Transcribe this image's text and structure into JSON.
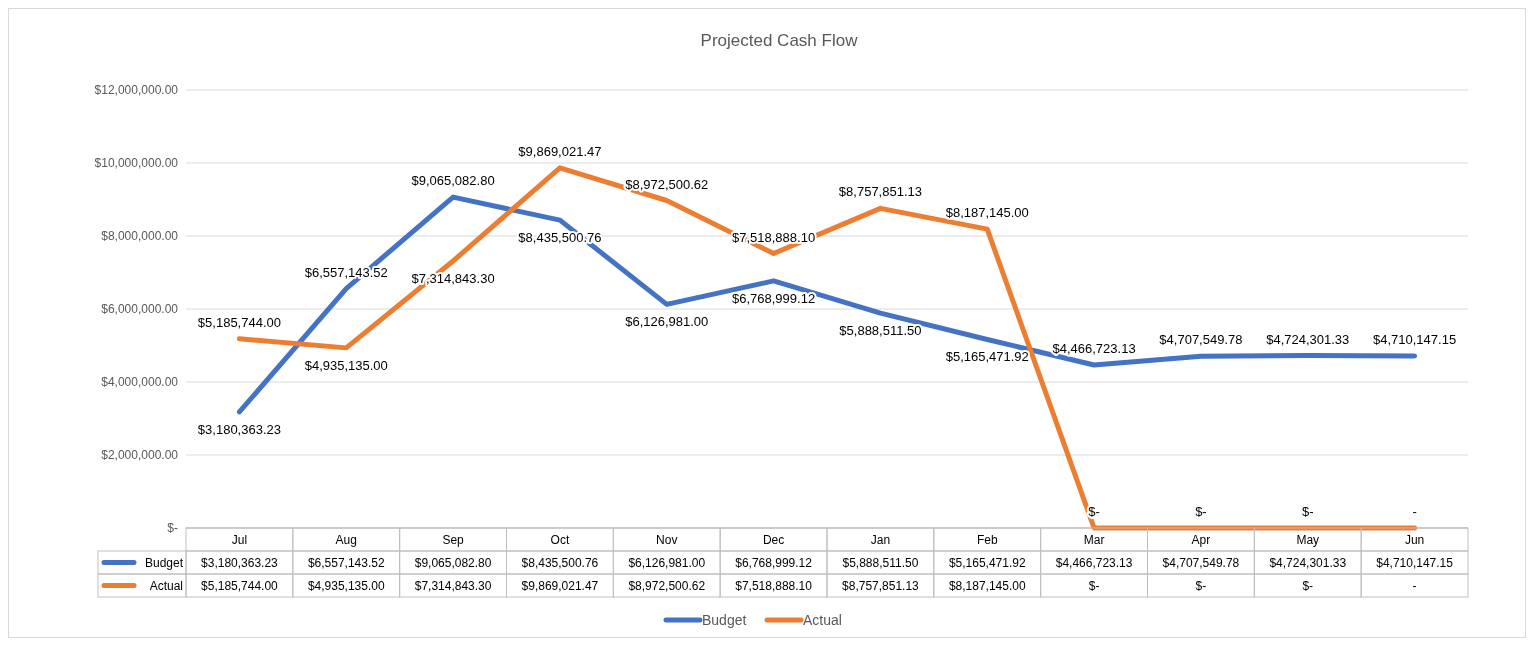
{
  "chart_data": {
    "type": "line",
    "title": "Projected Cash Flow",
    "categories": [
      "Jul",
      "Aug",
      "Sep",
      "Oct",
      "Nov",
      "Dec",
      "Jan",
      "Feb",
      "Mar",
      "Apr",
      "May",
      "Jun"
    ],
    "series": [
      {
        "name": "Budget",
        "color": "#4472c4",
        "values": [
          3180363.23,
          6557143.52,
          9065082.8,
          8435500.76,
          6126981.0,
          6768999.12,
          5888511.5,
          5165471.92,
          4466723.13,
          4707549.78,
          4724301.33,
          4710147.15
        ],
        "value_labels": [
          "$3,180,363.23",
          "$6,557,143.52",
          "$9,065,082.80",
          "$8,435,500.76",
          "$6,126,981.00",
          "$6,768,999.12",
          "$5,888,511.50",
          "$5,165,471.92",
          "$4,466,723.13",
          "$4,707,549.78",
          "$4,724,301.33",
          "$4,710,147.15"
        ]
      },
      {
        "name": "Actual",
        "color": "#ed7d31",
        "values": [
          5185744.0,
          4935135.0,
          7314843.3,
          9869021.47,
          8972500.62,
          7518888.1,
          8757851.13,
          8187145.0,
          0,
          0,
          0,
          0
        ],
        "value_labels": [
          "$5,185,744.00",
          "$4,935,135.00",
          "$7,314,843.30",
          "$9,869,021.47",
          "$8,972,500.62",
          "$7,518,888.10",
          "$8,757,851.13",
          "$8,187,145.00",
          "$-",
          "$-",
          "$-",
          "-"
        ]
      }
    ],
    "ylim": [
      0,
      12000000
    ],
    "yticks": [
      {
        "value": 0,
        "label": "$-"
      },
      {
        "value": 2000000,
        "label": "$2,000,000.00"
      },
      {
        "value": 4000000,
        "label": "$4,000,000.00"
      },
      {
        "value": 6000000,
        "label": "$6,000,000.00"
      },
      {
        "value": 8000000,
        "label": "$8,000,000.00"
      },
      {
        "value": 10000000,
        "label": "$10,000,000.00"
      },
      {
        "value": 12000000,
        "label": "$12,000,000.00"
      }
    ],
    "grid": "y",
    "legend": "bottom",
    "marker": "none",
    "line_style": "solid"
  }
}
